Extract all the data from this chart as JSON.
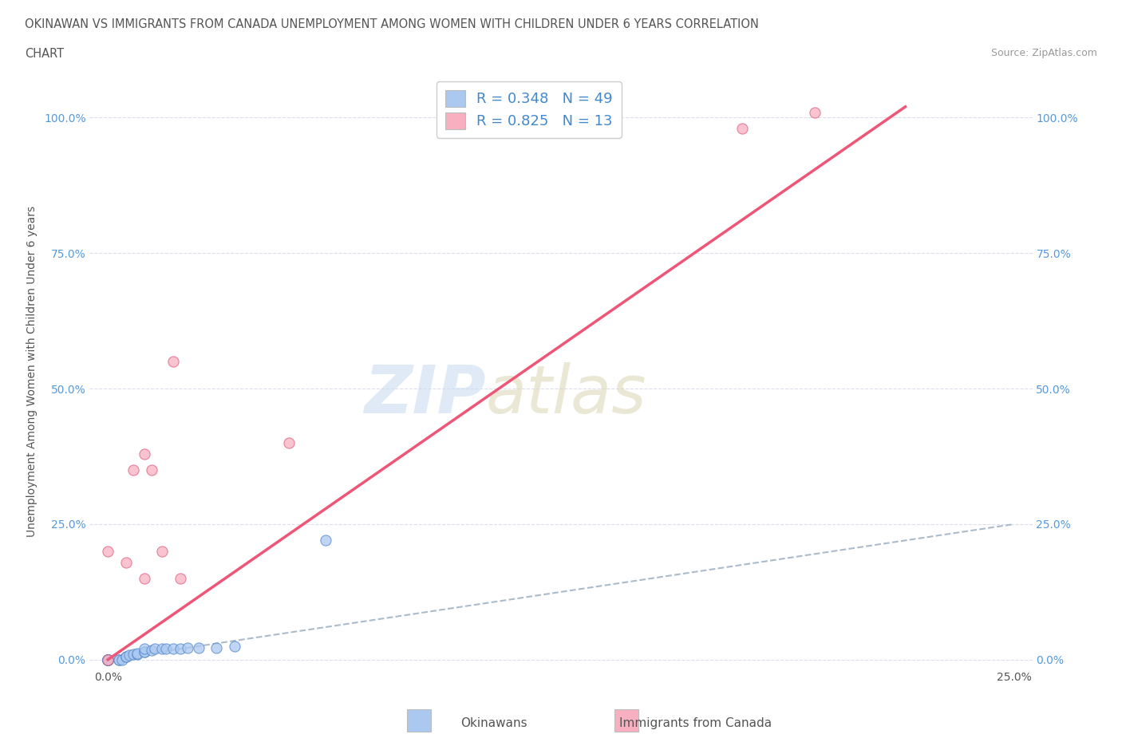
{
  "title_line1": "OKINAWAN VS IMMIGRANTS FROM CANADA UNEMPLOYMENT AMONG WOMEN WITH CHILDREN UNDER 6 YEARS CORRELATION",
  "title_line2": "CHART",
  "source_text": "Source: ZipAtlas.com",
  "ylabel": "Unemployment Among Women with Children Under 6 years",
  "xlabel_okinawan": "Okinawans",
  "xlabel_canada": "Immigrants from Canada",
  "R_okinawan": 0.348,
  "N_okinawan": 49,
  "R_canada": 0.825,
  "N_canada": 13,
  "color_okinawan_fill": "#aac8f0",
  "color_okinawan_edge": "#5588cc",
  "color_canada_fill": "#f8b0c0",
  "color_canada_edge": "#e06080",
  "color_okinawan_line": "#6699cc",
  "color_canada_line": "#ee5577",
  "color_diagonal": "#aabbcc",
  "okinawan_x": [
    0.0,
    0.0,
    0.0,
    0.0,
    0.0,
    0.0,
    0.0,
    0.0,
    0.0,
    0.0,
    0.0,
    0.0,
    0.0,
    0.0,
    0.0,
    0.0,
    0.0,
    0.0,
    0.0,
    0.0,
    0.0,
    0.0,
    0.0,
    0.0,
    0.0,
    0.0,
    0.003,
    0.003,
    0.004,
    0.005,
    0.005,
    0.006,
    0.007,
    0.008,
    0.008,
    0.01,
    0.01,
    0.01,
    0.012,
    0.013,
    0.015,
    0.016,
    0.018,
    0.02,
    0.022,
    0.025,
    0.03,
    0.035,
    0.06
  ],
  "okinawan_y": [
    0.0,
    0.0,
    0.0,
    0.0,
    0.0,
    0.0,
    0.0,
    0.0,
    0.0,
    0.0,
    0.0,
    0.0,
    0.0,
    0.0,
    0.0,
    0.0,
    0.0,
    0.0,
    0.0,
    0.0,
    0.0,
    0.0,
    0.0,
    0.0,
    0.0,
    0.0,
    0.0,
    0.0,
    0.0,
    0.005,
    0.005,
    0.008,
    0.01,
    0.01,
    0.012,
    0.015,
    0.015,
    0.02,
    0.018,
    0.02,
    0.02,
    0.02,
    0.02,
    0.02,
    0.022,
    0.022,
    0.022,
    0.025,
    0.22
  ],
  "canada_x": [
    0.0,
    0.0,
    0.005,
    0.007,
    0.01,
    0.01,
    0.012,
    0.015,
    0.018,
    0.02,
    0.05,
    0.175,
    0.195
  ],
  "canada_y": [
    0.0,
    0.2,
    0.18,
    0.35,
    0.38,
    0.15,
    0.35,
    0.2,
    0.55,
    0.15,
    0.4,
    0.98,
    1.01
  ],
  "ok_line_x0": 0.0,
  "ok_line_y0": 0.0,
  "ok_line_x1": 0.25,
  "ok_line_y1": 0.25,
  "ca_line_x0": 0.0,
  "ca_line_y0": 0.0,
  "ca_line_x1": 0.22,
  "ca_line_y1": 1.02,
  "x_tick_pos": [
    0.0,
    0.05,
    0.1,
    0.15,
    0.2,
    0.25
  ],
  "x_tick_labels": [
    "0.0%",
    "",
    "",
    "",
    "",
    "25.0%"
  ],
  "y_tick_pos": [
    0.0,
    0.25,
    0.5,
    0.75,
    1.0
  ],
  "y_tick_labels": [
    "0.0%",
    "25.0%",
    "50.0%",
    "75.0%",
    "100.0%"
  ],
  "title_color": "#555555",
  "source_color": "#999999",
  "ylabel_color": "#555555",
  "ytick_color": "#5599dd",
  "xtick_color": "#555555",
  "legend_label_color": "#4488cc",
  "grid_color": "#ddddee",
  "watermark_zip_color": "#ccddf0",
  "watermark_atlas_color": "#ddd8b8"
}
